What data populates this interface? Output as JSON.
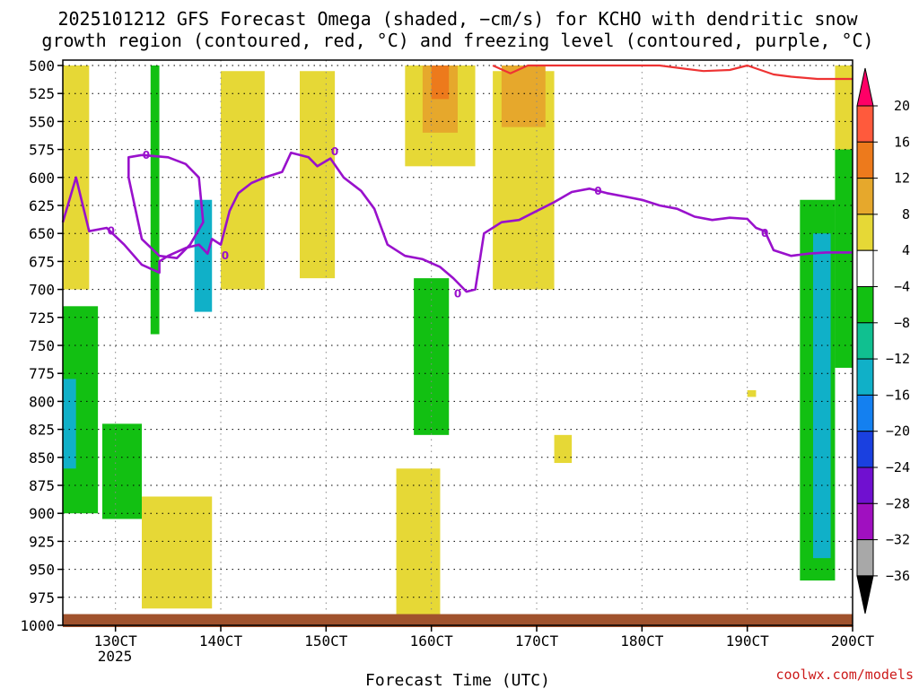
{
  "chart_data": {
    "type": "heatmap",
    "title_line1": "2025101212 GFS Forecast Omega (shaded, −cm/s) for KCHO with dendritic snow",
    "title_line2": "growth region (contoured, red, °C) and freezing level (contoured, purple, °C)",
    "xlabel": "Forecast Time (UTC)",
    "x_ticks": [
      "130CT",
      "140CT",
      "150CT",
      "160CT",
      "170CT",
      "180CT",
      "190CT",
      "200CT"
    ],
    "x_tick_hours": [
      12,
      36,
      60,
      84,
      108,
      132,
      156,
      180
    ],
    "x_year_label": "2025",
    "x_range_hours": [
      0,
      180
    ],
    "y_ticks": [
      500,
      525,
      550,
      575,
      600,
      625,
      650,
      675,
      700,
      725,
      750,
      775,
      800,
      825,
      850,
      875,
      900,
      925,
      950,
      975,
      1000
    ],
    "y_range_hpa": [
      500,
      1000
    ],
    "colorbar": {
      "labels": [
        "20",
        "16",
        "12",
        "8",
        "4",
        "−4",
        "−8",
        "−12",
        "−16",
        "−20",
        "−24",
        "−28",
        "−32",
        "−36"
      ],
      "colors": [
        "#ff0066",
        "#ff5a3c",
        "#ed7a1c",
        "#e6a82c",
        "#e6d836",
        "#ffffff",
        "#12c012",
        "#10c090",
        "#10b0c8",
        "#1480f0",
        "#1a40e0",
        "#7010d0",
        "#a010c0",
        "#a8a8a8",
        "#000000"
      ]
    },
    "freezing_level": {
      "label": "0",
      "color": "#9911cc",
      "points": [
        [
          0,
          640
        ],
        [
          3,
          600
        ],
        [
          6,
          648
        ],
        [
          10,
          645
        ],
        [
          14,
          660
        ],
        [
          18,
          678
        ],
        [
          22,
          685
        ],
        [
          22,
          675
        ],
        [
          24,
          670
        ],
        [
          28,
          663
        ],
        [
          31,
          660
        ],
        [
          33,
          668
        ],
        [
          34,
          655
        ],
        [
          36,
          660
        ],
        [
          38,
          630
        ],
        [
          40,
          614
        ],
        [
          43,
          605
        ],
        [
          46,
          600
        ],
        [
          50,
          595
        ],
        [
          52,
          578
        ],
        [
          56,
          582
        ],
        [
          58,
          590
        ],
        [
          61,
          583
        ],
        [
          64,
          600
        ],
        [
          68,
          612
        ],
        [
          71,
          628
        ],
        [
          74,
          660
        ],
        [
          78,
          670
        ],
        [
          82,
          673
        ],
        [
          86,
          680
        ],
        [
          89,
          690
        ],
        [
          92,
          702
        ],
        [
          94,
          700
        ],
        [
          96,
          650
        ],
        [
          100,
          640
        ],
        [
          104,
          638
        ],
        [
          108,
          630
        ],
        [
          112,
          622
        ],
        [
          116,
          613
        ],
        [
          120,
          610
        ],
        [
          124,
          614
        ],
        [
          128,
          617
        ],
        [
          132,
          620
        ],
        [
          136,
          625
        ],
        [
          140,
          628
        ],
        [
          144,
          635
        ],
        [
          148,
          638
        ],
        [
          152,
          636
        ],
        [
          156,
          637
        ],
        [
          158,
          645
        ],
        [
          160,
          648
        ],
        [
          162,
          665
        ],
        [
          166,
          670
        ],
        [
          170,
          668
        ],
        [
          174,
          667
        ],
        [
          180,
          667
        ]
      ],
      "loop": [
        [
          18,
          580
        ],
        [
          15,
          582
        ],
        [
          15,
          600
        ],
        [
          18,
          655
        ],
        [
          22,
          670
        ],
        [
          26,
          672
        ],
        [
          29,
          660
        ],
        [
          32,
          640
        ],
        [
          31,
          600
        ],
        [
          28,
          588
        ],
        [
          24,
          582
        ],
        [
          18,
          580
        ]
      ],
      "label_positions": [
        [
          11,
          648
        ],
        [
          19,
          580
        ],
        [
          37,
          670
        ],
        [
          62,
          577
        ],
        [
          90,
          704
        ],
        [
          122,
          612
        ],
        [
          160,
          650
        ]
      ]
    },
    "dgz_contour": {
      "color": "#ee3333",
      "points": [
        [
          98,
          500
        ],
        [
          102,
          507
        ],
        [
          106,
          500
        ],
        [
          136,
          500
        ],
        [
          140,
          502
        ],
        [
          146,
          505
        ],
        [
          152,
          504
        ],
        [
          156,
          500
        ],
        [
          162,
          508
        ],
        [
          166,
          510
        ],
        [
          172,
          512
        ],
        [
          180,
          512
        ]
      ]
    },
    "shaded_regions": [
      {
        "omega": 6,
        "hours": [
          0,
          6
        ],
        "hpa": [
          500,
          700
        ]
      },
      {
        "omega": 6,
        "hours": [
          36,
          46
        ],
        "hpa": [
          505,
          700
        ]
      },
      {
        "omega": 6,
        "hours": [
          54,
          62
        ],
        "hpa": [
          505,
          690
        ]
      },
      {
        "omega": 6,
        "hours": [
          78,
          94
        ],
        "hpa": [
          500,
          590
        ]
      },
      {
        "omega": 10,
        "hours": [
          82,
          90
        ],
        "hpa": [
          500,
          560
        ]
      },
      {
        "omega": 14,
        "hours": [
          84,
          88
        ],
        "hpa": [
          500,
          530
        ]
      },
      {
        "omega": 6,
        "hours": [
          98,
          112
        ],
        "hpa": [
          505,
          700
        ]
      },
      {
        "omega": 10,
        "hours": [
          100,
          110
        ],
        "hpa": [
          500,
          555
        ]
      },
      {
        "omega": 6,
        "hours": [
          176,
          180
        ],
        "hpa": [
          500,
          650
        ]
      },
      {
        "omega": 6,
        "hours": [
          18,
          34
        ],
        "hpa": [
          885,
          985
        ]
      },
      {
        "omega": 6,
        "hours": [
          76,
          86
        ],
        "hpa": [
          860,
          990
        ]
      },
      {
        "omega": 6,
        "hours": [
          112,
          116
        ],
        "hpa": [
          830,
          855
        ]
      },
      {
        "omega": 6,
        "hours": [
          156,
          158
        ],
        "hpa": [
          790,
          796
        ]
      },
      {
        "omega": -6,
        "hours": [
          0,
          8
        ],
        "hpa": [
          715,
          900
        ]
      },
      {
        "omega": -14,
        "hours": [
          0,
          3
        ],
        "hpa": [
          780,
          860
        ]
      },
      {
        "omega": -6,
        "hours": [
          9,
          18
        ],
        "hpa": [
          820,
          905
        ]
      },
      {
        "omega": -6,
        "hours": [
          20,
          22
        ],
        "hpa": [
          500,
          740
        ]
      },
      {
        "omega": -14,
        "hours": [
          30,
          34
        ],
        "hpa": [
          620,
          720
        ]
      },
      {
        "omega": -6,
        "hours": [
          80,
          88
        ],
        "hpa": [
          690,
          830
        ]
      },
      {
        "omega": -6,
        "hours": [
          168,
          176
        ],
        "hpa": [
          620,
          960
        ]
      },
      {
        "omega": -12,
        "hours": [
          171,
          175
        ],
        "hpa": [
          650,
          940
        ]
      },
      {
        "omega": -6,
        "hours": [
          176,
          180
        ],
        "hpa": [
          575,
          770
        ]
      }
    ]
  },
  "credit": "coolwx.com/models"
}
